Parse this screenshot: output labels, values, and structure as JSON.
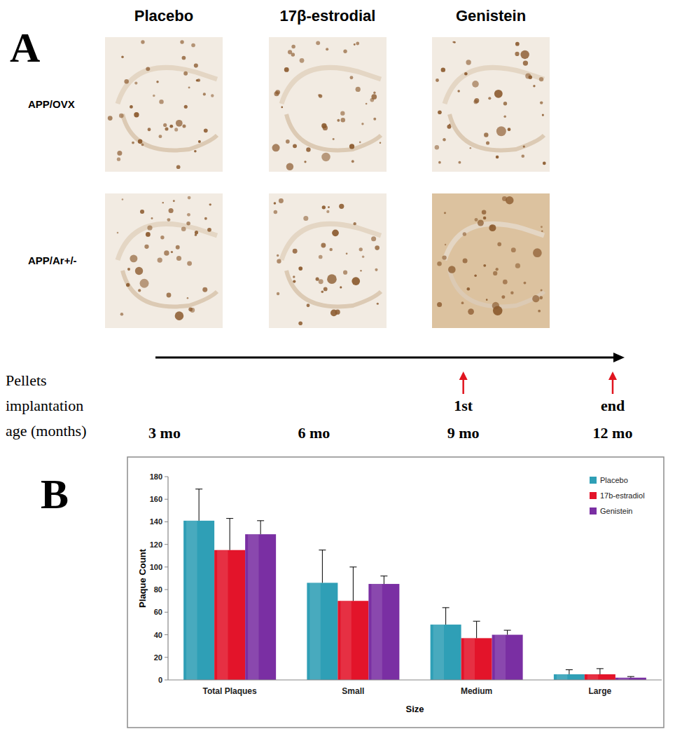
{
  "panel_a": {
    "label": "A",
    "columns": [
      "Placebo",
      "17β-estrodial",
      "Genistein"
    ],
    "rows": [
      "APP/OVX",
      "APP/Ar+/-"
    ],
    "timeline": {
      "caption": [
        "Pellets",
        "implantation",
        "age (months)"
      ],
      "ticks": [
        {
          "value": 3,
          "label": "3 mo"
        },
        {
          "value": 6,
          "label": "6 mo"
        },
        {
          "value": 9,
          "label": "9 mo"
        },
        {
          "value": 12,
          "label": "12 mo"
        }
      ],
      "events": [
        {
          "value": 9,
          "label": "1st"
        },
        {
          "value": 12,
          "label": "end"
        }
      ]
    }
  },
  "panel_b": {
    "label": "B"
  },
  "chart_data": {
    "type": "bar",
    "x_label": "Size",
    "y_label": "Plaque Count",
    "categories": [
      "Total Plaques",
      "Small",
      "Medium",
      "Large"
    ],
    "series": [
      {
        "name": "Placebo",
        "color": "#2f9fb6",
        "values": [
          141,
          86,
          49,
          5
        ],
        "errors": [
          28,
          29,
          15,
          4
        ]
      },
      {
        "name": "17b-estradiol",
        "color": "#e3142a",
        "values": [
          115,
          70,
          37,
          5
        ],
        "errors": [
          28,
          30,
          15,
          5
        ]
      },
      {
        "name": "Genistein",
        "color": "#7a2fa3",
        "values": [
          129,
          85,
          40,
          2
        ],
        "errors": [
          12,
          7,
          4,
          1
        ]
      }
    ],
    "ylim": [
      0,
      180
    ],
    "yticks": [
      0,
      20,
      40,
      60,
      80,
      100,
      120,
      140,
      160,
      180
    ],
    "grid": false,
    "legend": "top-right"
  }
}
